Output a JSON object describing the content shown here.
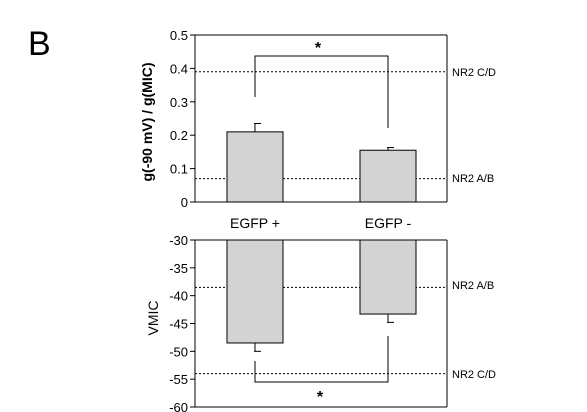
{
  "panel_label": "B",
  "chart_data": [
    {
      "type": "bar",
      "categories": [
        "EGFP +",
        "EGFP -"
      ],
      "values": [
        0.21,
        0.155
      ],
      "errors": [
        0.025,
        0.008
      ],
      "ylabel": "g(-90 mV) / g(MIC)",
      "ylim": [
        0,
        0.5
      ],
      "yticks": [
        "0",
        "0.1",
        "0.2",
        "0.3",
        "0.4",
        "0.5"
      ],
      "reference_lines": [
        {
          "label": "NR2 C/D",
          "value": 0.39
        },
        {
          "label": "NR2 A/B",
          "value": 0.07
        }
      ],
      "significance": "*",
      "bar_color": "#d3d3d3"
    },
    {
      "type": "bar",
      "categories": [
        "EGFP +",
        "EGFP -"
      ],
      "values": [
        -48.5,
        -43.3
      ],
      "errors": [
        1.5,
        1.5
      ],
      "ylabel": "VMIC",
      "ylim": [
        -60,
        -30
      ],
      "yticks": [
        "-30",
        "-35",
        "-40",
        "-45",
        "-50",
        "-55",
        "-60"
      ],
      "reference_lines": [
        {
          "label": "NR2 A/B",
          "value": -38.5
        },
        {
          "label": "NR2 C/D",
          "value": -54
        }
      ],
      "significance": "*",
      "bar_color": "#d3d3d3"
    }
  ]
}
